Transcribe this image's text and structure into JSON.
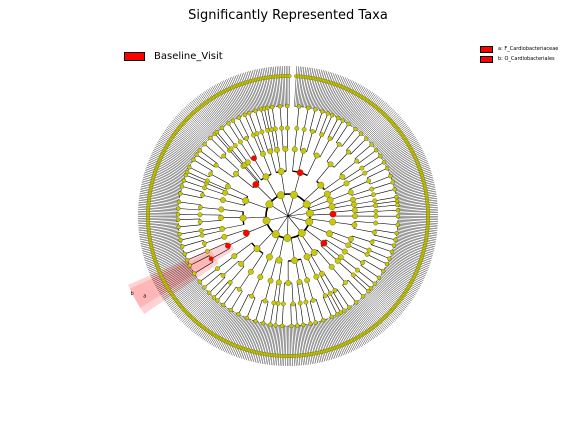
{
  "figure": {
    "title": "Significantly Represented Taxa"
  },
  "legend_main": {
    "label": "Baseline_Visit",
    "color": "#ff0000"
  },
  "legend_clades": [
    {
      "label": "a: F_Cardiobacteriaceae",
      "color": "#ff0000"
    },
    {
      "label": "b: O_Cardiobacteriales",
      "color": "#ff0000"
    }
  ],
  "highlight": {
    "labels": [
      "a",
      "b"
    ],
    "color": "#ff8080"
  },
  "colors": {
    "node": "#c8c810",
    "node_stroke": "#555500",
    "significant": "#ff0000",
    "branch": "#000000"
  }
}
